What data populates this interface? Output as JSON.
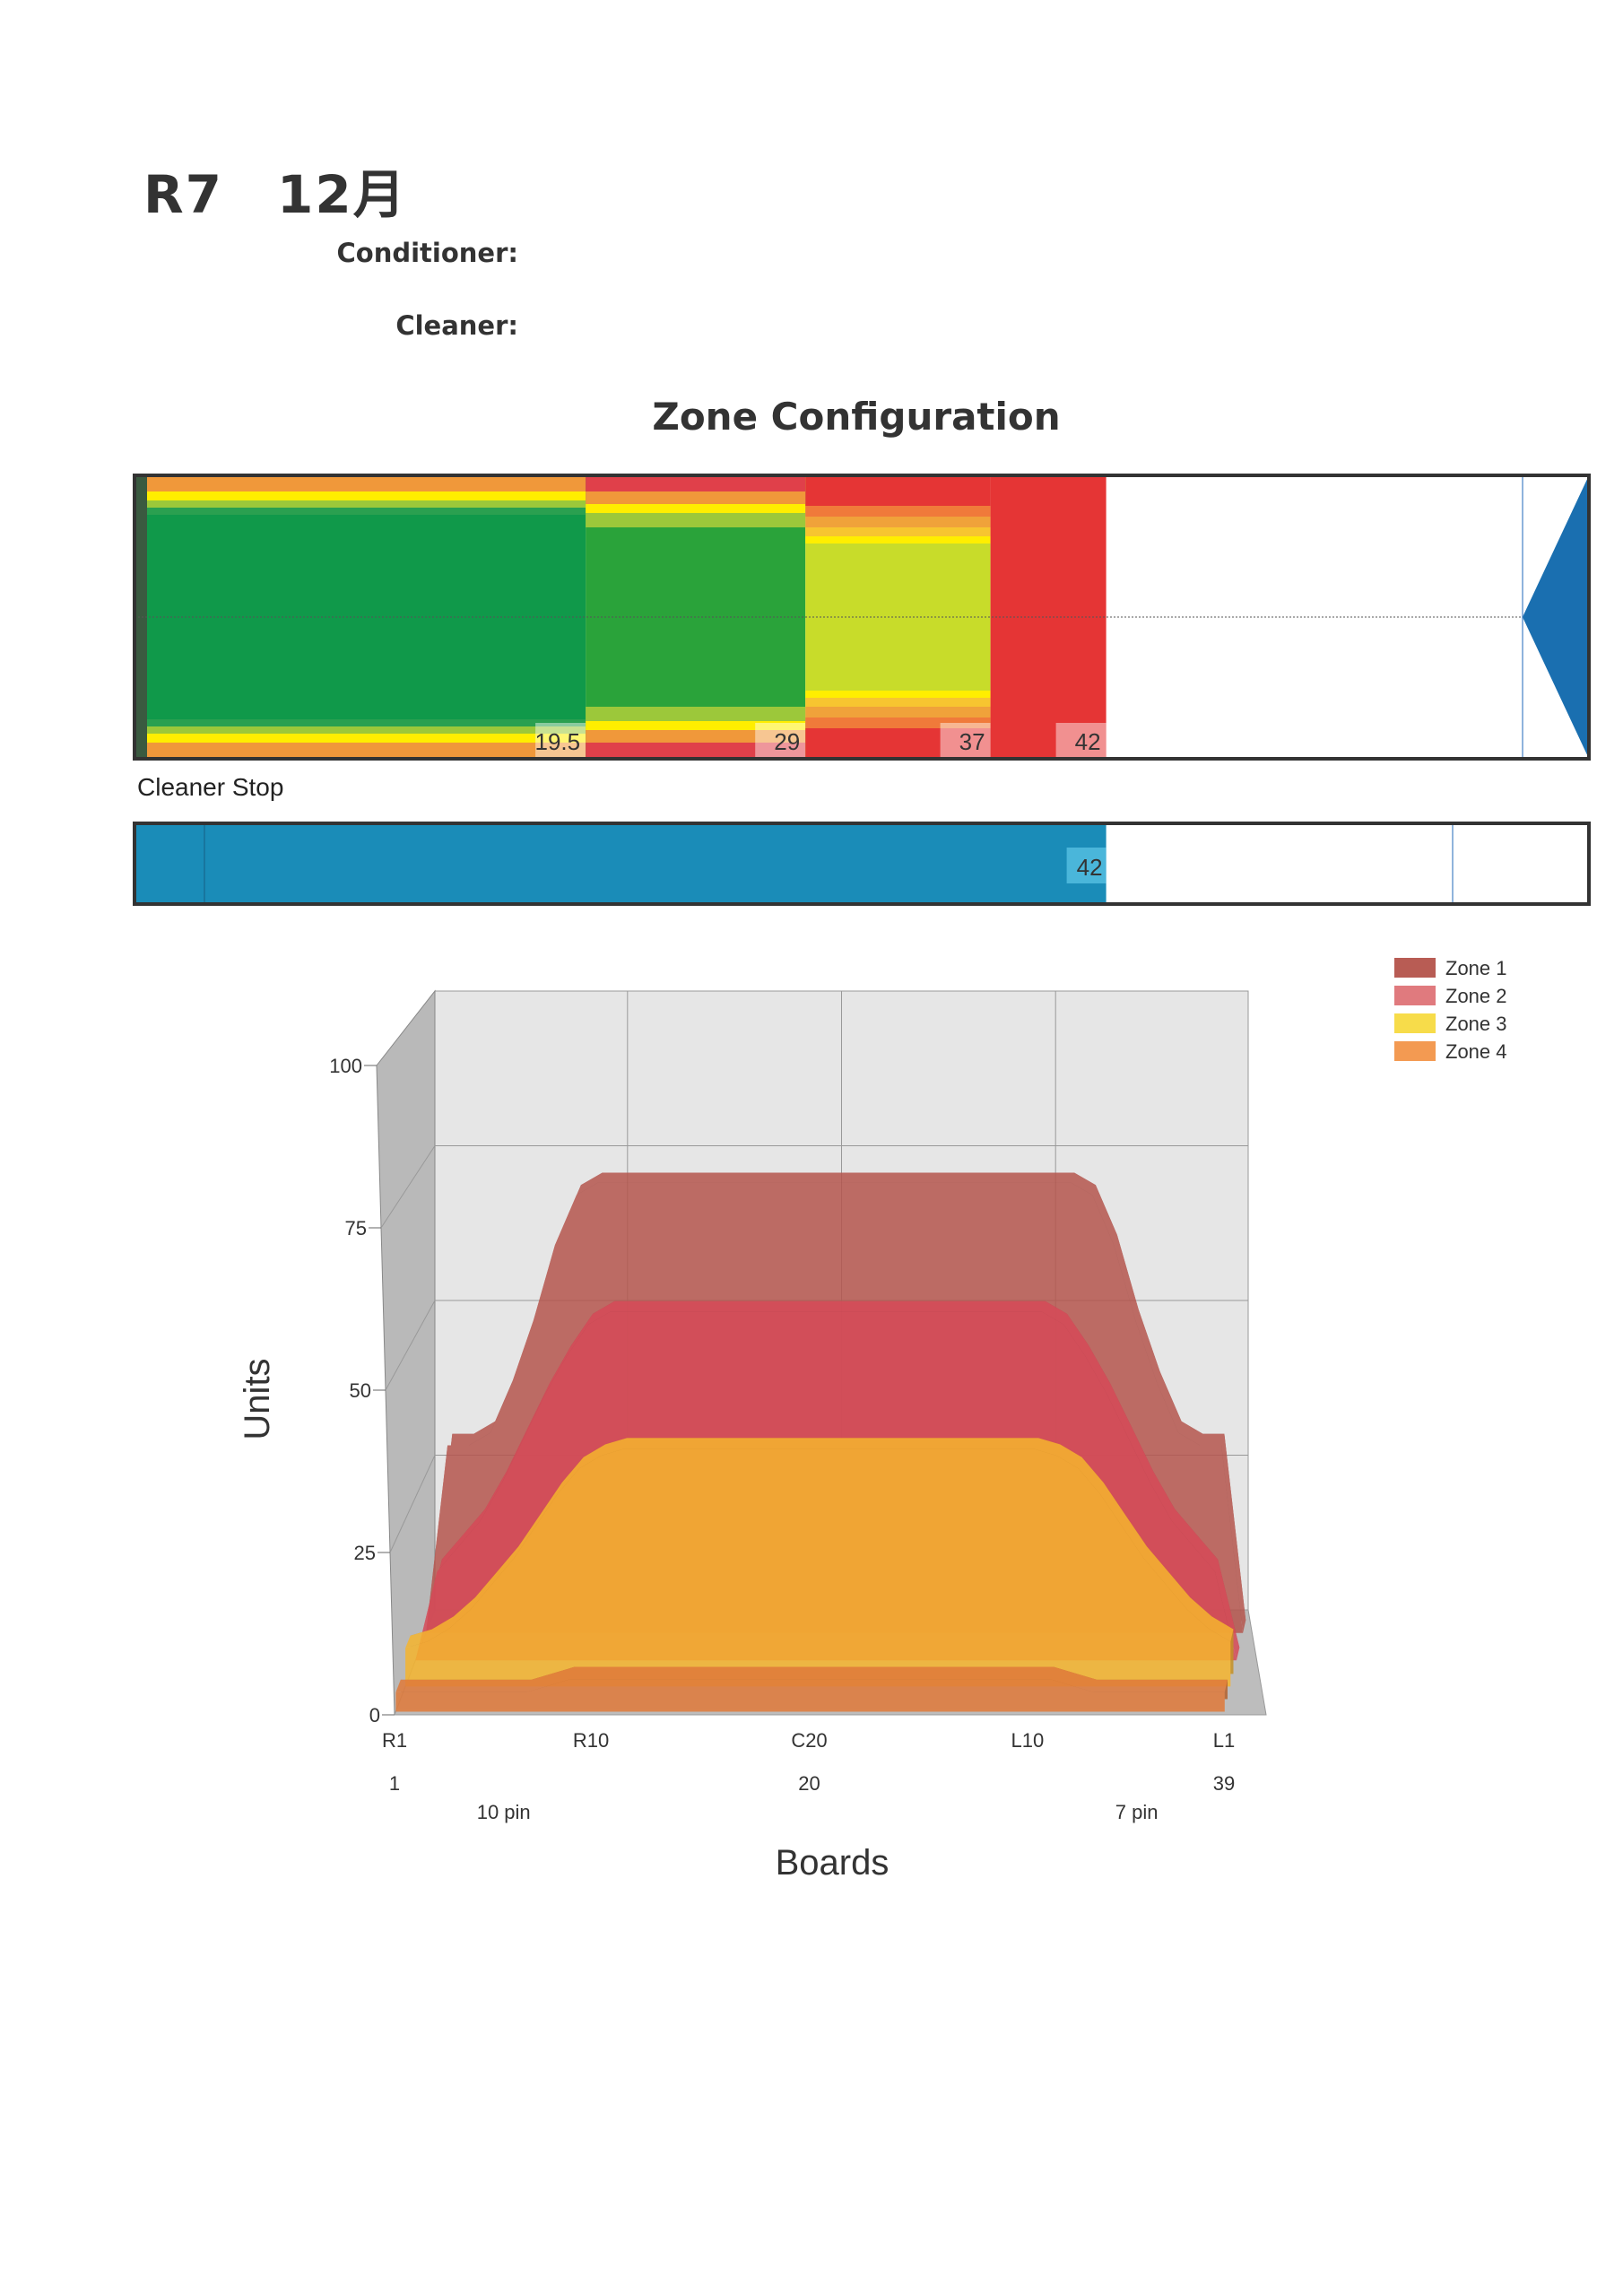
{
  "header": {
    "title": "R7　12月",
    "conditioner_label": "Conditioner:",
    "cleaner_label": "Cleaner:"
  },
  "zone_configuration": {
    "title": "Zone Configuration",
    "zones": [
      {
        "end_ft": 19.5,
        "label": "19.5"
      },
      {
        "end_ft": 29,
        "label": "29"
      },
      {
        "end_ft": 37,
        "label": "37"
      },
      {
        "end_ft": 42,
        "label": "42"
      }
    ],
    "colors": {
      "zone1": "#10994a",
      "zone2": "#2aa33a",
      "zone3": "#c8dc2a",
      "zone4": "#e53535",
      "pin_deck": "#1a6fb0"
    }
  },
  "cleaner_stop": {
    "label": "Cleaner Stop",
    "value_ft": 42,
    "value_label": "42",
    "color": "#1a8cb8"
  },
  "chart_data": {
    "type": "area",
    "style": "3d",
    "ylabel": "Units",
    "xlabel": "Boards",
    "ylim": [
      0,
      100
    ],
    "yticks": [
      "0",
      "25",
      "50",
      "75",
      "100"
    ],
    "xticks": [
      {
        "board": 1,
        "label": "R1"
      },
      {
        "board": 10,
        "label": "R10"
      },
      {
        "board": 20,
        "label": "C20"
      },
      {
        "board": 30,
        "label": "L10"
      },
      {
        "board": 39,
        "label": "L1"
      }
    ],
    "xticks_numbers": [
      {
        "board": 1,
        "label": "1"
      },
      {
        "board": 20,
        "label": "20"
      },
      {
        "board": 39,
        "label": "39"
      }
    ],
    "annotations": [
      {
        "board": 6,
        "label": "10 pin"
      },
      {
        "board": 35,
        "label": "7 pin"
      }
    ],
    "legend_position": "top-right",
    "grid": true,
    "x": [
      1,
      2,
      3,
      4,
      5,
      6,
      7,
      8,
      9,
      10,
      11,
      12,
      13,
      14,
      15,
      16,
      17,
      18,
      19,
      20,
      21,
      22,
      23,
      24,
      25,
      26,
      27,
      28,
      29,
      30,
      31,
      32,
      33,
      34,
      35,
      36,
      37,
      38,
      39
    ],
    "series": [
      {
        "name": "Zone 1",
        "color": "#b5564e",
        "values": [
          0,
          30,
          30,
          32,
          40,
          50,
          62,
          70,
          72,
          72,
          72,
          72,
          72,
          72,
          72,
          72,
          72,
          72,
          72,
          72,
          72,
          72,
          72,
          72,
          72,
          72,
          72,
          72,
          72,
          72,
          72,
          70,
          62,
          50,
          40,
          32,
          30,
          30,
          0
        ]
      },
      {
        "name": "Zone 2",
        "color": "#d64a58",
        "values": [
          0,
          14,
          18,
          22,
          28,
          35,
          42,
          48,
          53,
          55,
          55,
          55,
          55,
          55,
          55,
          55,
          55,
          55,
          55,
          55,
          55,
          55,
          55,
          55,
          55,
          55,
          55,
          55,
          55,
          55,
          53,
          48,
          42,
          35,
          28,
          22,
          18,
          14,
          0
        ]
      },
      {
        "name": "Zone 3",
        "color": "#f6b52e",
        "values": [
          6,
          7,
          9,
          12,
          16,
          20,
          25,
          30,
          34,
          36,
          37,
          37,
          37,
          37,
          37,
          37,
          37,
          37,
          37,
          37,
          37,
          37,
          37,
          37,
          37,
          37,
          37,
          37,
          37,
          37,
          36,
          34,
          30,
          25,
          20,
          16,
          12,
          9,
          7
        ]
      },
      {
        "name": "Zone 4",
        "color": "#e07a3a",
        "values": [
          3,
          3,
          3,
          3,
          3,
          3,
          3,
          4,
          5,
          5,
          5,
          5,
          5,
          5,
          5,
          5,
          5,
          5,
          5,
          5,
          5,
          5,
          5,
          5,
          5,
          5,
          5,
          5,
          5,
          5,
          5,
          4,
          3,
          3,
          3,
          3,
          3,
          3,
          3
        ]
      }
    ],
    "legend": [
      {
        "name": "Zone 1",
        "color": "#b85c54"
      },
      {
        "name": "Zone 2",
        "color": "#e07a7e"
      },
      {
        "name": "Zone 3",
        "color": "#f7dc4a"
      },
      {
        "name": "Zone 4",
        "color": "#f39a52"
      }
    ]
  }
}
